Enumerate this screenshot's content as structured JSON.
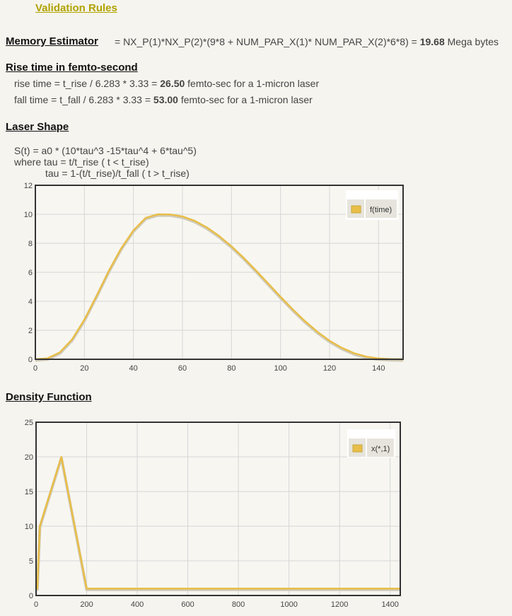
{
  "header": {
    "validation_link": "Validation Rules"
  },
  "memory": {
    "heading": "Memory Estimator",
    "formula": "= NX_P(1)*NX_P(2)*(9*8 + NUM_PAR_X(1)* NUM_PAR_X(2)*6*8) =",
    "value": "19.68",
    "unit": "Mega bytes"
  },
  "rise": {
    "heading": "Rise time in femto-second",
    "rise_formula": "rise time = t_rise / 6.283 * 3.33 =",
    "rise_value": "26.50",
    "rise_unit": "femto-sec for a 1-micron laser",
    "fall_formula": "fall time = t_fall / 6.283 * 3.33 =",
    "fall_value": "53.00",
    "fall_unit": "femto-sec for a 1-micron laser"
  },
  "laser": {
    "heading": "Laser Shape",
    "eq1": "S(t) = a0 * (10*tau^3 -15*tau^4 + 6*tau^5)",
    "eq2": "where tau = t/t_rise ( t < t_rise)",
    "eq3": "tau = 1-(t/t_rise)/t_fall ( t > t_rise)"
  },
  "density": {
    "heading": "Density Function"
  },
  "colors": {
    "series": "#e8be48",
    "frame": "#333333",
    "grid": "#d6d6d6",
    "bg": "#f5f4ee"
  },
  "chart_data": [
    {
      "type": "line",
      "title": "",
      "xlabel": "",
      "ylabel": "",
      "xlim": [
        0,
        150
      ],
      "ylim": [
        0,
        12
      ],
      "xticks": [
        0,
        20,
        40,
        60,
        80,
        100,
        120,
        140
      ],
      "yticks": [
        0,
        2,
        4,
        6,
        8,
        10,
        12
      ],
      "grid": true,
      "legend": "top-right",
      "series": [
        {
          "name": "f(time)",
          "x": [
            0,
            5,
            10,
            15,
            20,
            25,
            30,
            35,
            40,
            45,
            50,
            55,
            60,
            65,
            70,
            75,
            80,
            85,
            90,
            95,
            100,
            105,
            110,
            115,
            120,
            125,
            130,
            135,
            140,
            145,
            150
          ],
          "y": [
            0,
            0.07,
            0.48,
            1.37,
            2.72,
            4.38,
            6.1,
            7.64,
            8.89,
            9.75,
            10.0,
            9.99,
            9.85,
            9.55,
            9.09,
            8.5,
            7.79,
            6.99,
            6.12,
            5.22,
            4.31,
            3.44,
            2.63,
            1.9,
            1.28,
            0.79,
            0.42,
            0.18,
            0.06,
            0.01,
            0
          ]
        }
      ]
    },
    {
      "type": "line",
      "title": "",
      "xlabel": "",
      "ylabel": "",
      "xlim": [
        0,
        1440
      ],
      "ylim": [
        0,
        25
      ],
      "xticks": [
        0,
        200,
        400,
        600,
        800,
        1000,
        1200,
        1400
      ],
      "yticks": [
        0,
        5,
        10,
        15,
        20,
        25
      ],
      "grid": true,
      "legend": "top-right",
      "series": [
        {
          "name": "x(*,1)",
          "x": [
            0,
            5,
            15,
            100,
            200,
            205,
            1440
          ],
          "y": [
            1,
            1,
            10,
            20,
            1,
            1,
            1
          ]
        }
      ]
    }
  ]
}
